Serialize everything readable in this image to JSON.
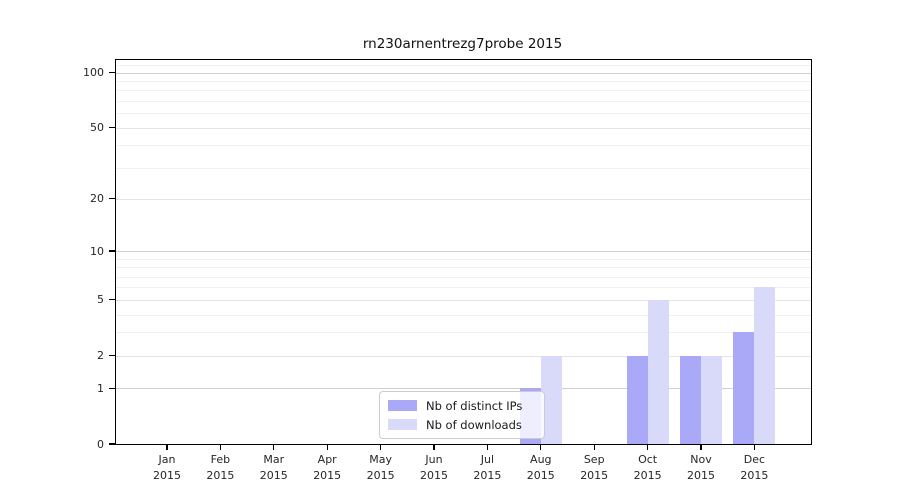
{
  "chart_data": {
    "type": "bar",
    "title": "rn230arnentrezg7probe 2015",
    "categories": [
      "Jan",
      "Feb",
      "Mar",
      "Apr",
      "May",
      "Jun",
      "Jul",
      "Aug",
      "Sep",
      "Oct",
      "Nov",
      "Dec"
    ],
    "category_year": "2015",
    "series": [
      {
        "name": "Nb of distinct IPs",
        "color": "#a9a9f8",
        "values": [
          0,
          0,
          0,
          0,
          0,
          0,
          0,
          1,
          0,
          2,
          2,
          3
        ]
      },
      {
        "name": "Nb of downloads",
        "color": "#d9d9fa",
        "values": [
          0,
          0,
          0,
          0,
          0,
          0,
          0,
          2,
          0,
          5,
          2,
          6
        ]
      }
    ],
    "y_axis": {
      "scale": "log10(value+1)",
      "ticks": [
        0,
        1,
        2,
        5,
        10,
        20,
        50,
        100
      ],
      "max_value": 117,
      "gridlines": {
        "major": [
          1,
          10,
          100
        ],
        "mid": [
          2,
          5,
          20,
          50
        ],
        "minor": [
          3,
          4,
          6,
          7,
          8,
          9,
          30,
          40,
          60,
          70,
          80,
          90,
          110
        ]
      }
    },
    "legend_position": "lower center",
    "grid": true
  }
}
